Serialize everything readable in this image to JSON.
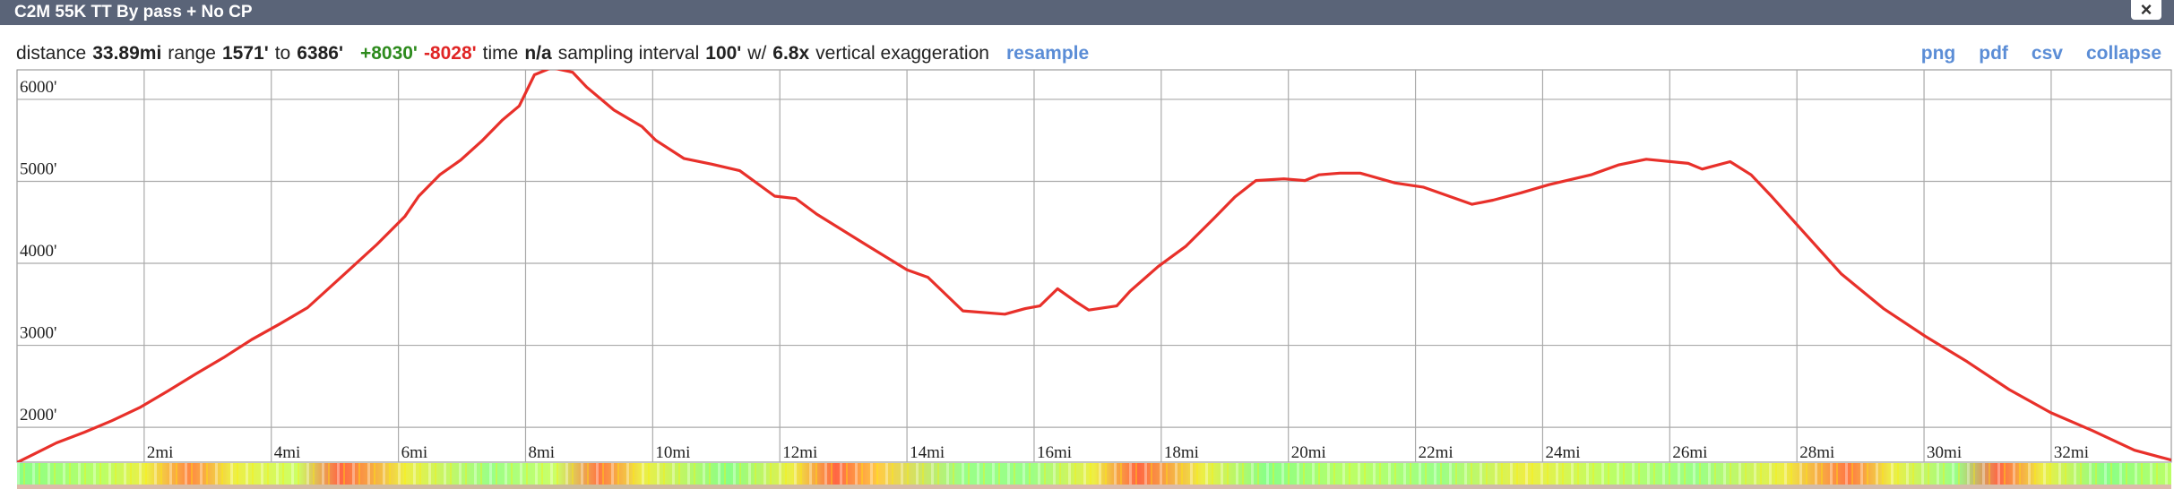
{
  "header": {
    "title": "C2M 55K TT By pass + No CP",
    "close": "×"
  },
  "stats": [
    {
      "text": "distance"
    },
    {
      "text": "33.89mi",
      "bold": true
    },
    {
      "text": "range"
    },
    {
      "text": "1571'",
      "bold": true
    },
    {
      "text": "to"
    },
    {
      "text": "6386'",
      "bold": true
    },
    {
      "text": "+8030'",
      "bold": true,
      "color": "#2e8b1e"
    },
    {
      "text": "-8028'",
      "bold": true,
      "color": "#e02525"
    },
    {
      "text": "time"
    },
    {
      "text": "n/a",
      "bold": true
    },
    {
      "text": "sampling interval"
    },
    {
      "text": "100'",
      "bold": true
    },
    {
      "text": "w/"
    },
    {
      "text": "6.8x",
      "bold": true
    },
    {
      "text": "vertical exaggeration"
    },
    {
      "text": "resample",
      "bold": true,
      "color": "#5b8dd6",
      "link": true
    }
  ],
  "links": [
    "png",
    "pdf",
    "csv",
    "collapse"
  ],
  "chart_data": {
    "type": "line",
    "color": "#e8302a",
    "grid": true,
    "x": [
      0,
      0.18,
      0.62,
      1.06,
      1.49,
      1.93,
      2.37,
      2.81,
      3.25,
      3.69,
      4.13,
      4.57,
      5.11,
      5.66,
      6.1,
      6.32,
      6.65,
      6.98,
      7.31,
      7.64,
      7.9,
      8.14,
      8.41,
      8.74,
      8.96,
      9.39,
      9.83,
      10.05,
      10.49,
      10.93,
      11.37,
      11.92,
      12.25,
      12.58,
      13.35,
      14.0,
      14.33,
      14.88,
      15.54,
      15.87,
      16.09,
      16.37,
      16.64,
      16.86,
      17.3,
      17.51,
      17.95,
      18.39,
      18.83,
      19.16,
      19.49,
      19.93,
      20.26,
      20.48,
      20.81,
      21.13,
      21.68,
      22.12,
      22.56,
      22.89,
      23.22,
      23.66,
      24.1,
      24.76,
      25.19,
      25.63,
      26.29,
      26.51,
      26.95,
      27.28,
      27.61,
      28.05,
      28.7,
      29.36,
      30.02,
      30.68,
      31.34,
      31.99,
      32.65,
      33.31,
      33.89
    ],
    "values": [
      1571,
      1640,
      1810,
      1940,
      2080,
      2240,
      2440,
      2650,
      2850,
      3070,
      3260,
      3460,
      3840,
      4230,
      4570,
      4820,
      5080,
      5260,
      5490,
      5750,
      5920,
      6300,
      6386,
      6330,
      6150,
      5870,
      5670,
      5500,
      5280,
      5210,
      5130,
      4820,
      4790,
      4600,
      4230,
      3920,
      3830,
      3420,
      3380,
      3450,
      3480,
      3690,
      3540,
      3430,
      3480,
      3660,
      3960,
      4210,
      4550,
      4810,
      5010,
      5030,
      5010,
      5080,
      5100,
      5100,
      4980,
      4930,
      4810,
      4720,
      4770,
      4860,
      4960,
      5080,
      5200,
      5270,
      5220,
      5150,
      5240,
      5080,
      4810,
      4430,
      3870,
      3450,
      3110,
      2800,
      2460,
      2180,
      1960,
      1720,
      1600
    ],
    "xlim": [
      0,
      33.89
    ],
    "ylim": [
      1575,
      6360
    ],
    "xticks": [
      {
        "value": 2,
        "label": "2mi"
      },
      {
        "value": 4,
        "label": "4mi"
      },
      {
        "value": 6,
        "label": "6mi"
      },
      {
        "value": 8,
        "label": "8mi"
      },
      {
        "value": 10,
        "label": "10mi"
      },
      {
        "value": 12,
        "label": "12mi"
      },
      {
        "value": 14,
        "label": "14mi"
      },
      {
        "value": 16,
        "label": "16mi"
      },
      {
        "value": 18,
        "label": "18mi"
      },
      {
        "value": 20,
        "label": "20mi"
      },
      {
        "value": 22,
        "label": "22mi"
      },
      {
        "value": 24,
        "label": "24mi"
      },
      {
        "value": 26,
        "label": "26mi"
      },
      {
        "value": 28,
        "label": "28mi"
      },
      {
        "value": 30,
        "label": "30mi"
      },
      {
        "value": 32,
        "label": "32mi"
      }
    ],
    "yticks": [
      {
        "value": 2000,
        "label": "2000'"
      },
      {
        "value": 3000,
        "label": "3000'"
      },
      {
        "value": 4000,
        "label": "4000'"
      },
      {
        "value": 5000,
        "label": "5000'"
      },
      {
        "value": 6000,
        "label": "6000'"
      }
    ]
  }
}
